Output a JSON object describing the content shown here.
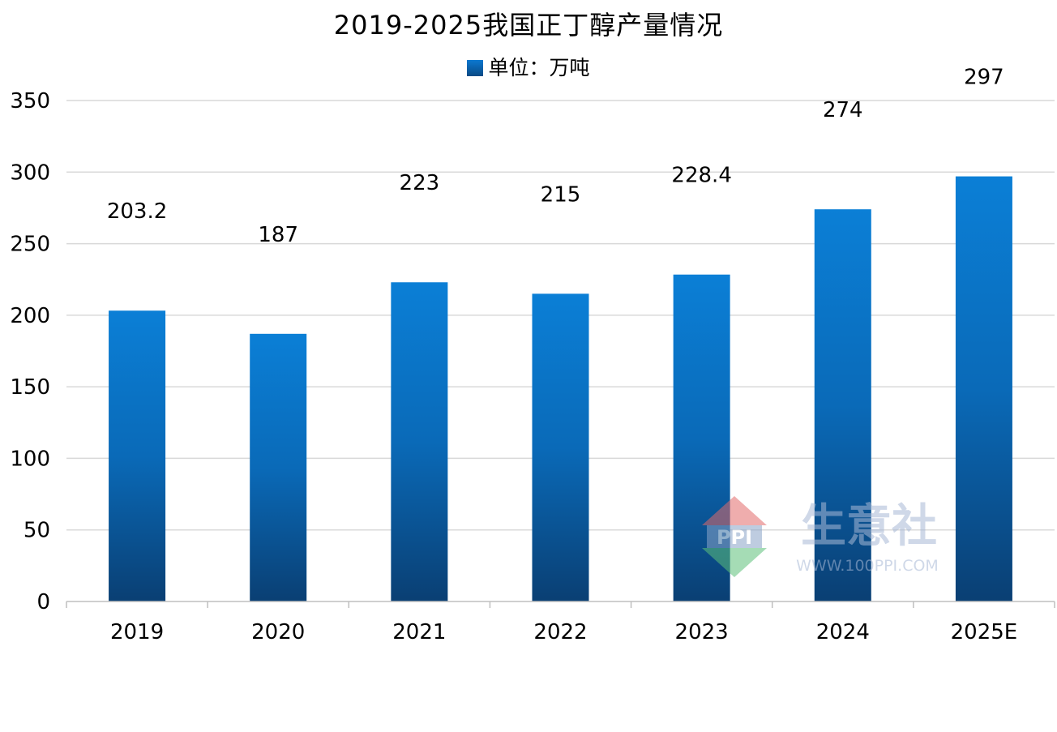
{
  "chart_data": {
    "type": "bar",
    "title": "2019-2025我国正丁醇产量情况",
    "categories": [
      "2019",
      "2020",
      "2021",
      "2022",
      "2023",
      "2024",
      "2025E"
    ],
    "series": [
      {
        "name": "单位：万吨",
        "values": [
          203.2,
          187,
          223,
          215,
          228.4,
          274,
          297
        ]
      }
    ],
    "data_labels": [
      "203.2",
      "187",
      "223",
      "215",
      "228.4",
      "274",
      "297"
    ],
    "ylim": [
      0,
      350
    ],
    "yticks": [
      0,
      50,
      100,
      150,
      200,
      250,
      300,
      350
    ],
    "grid": true,
    "legend_position": "top-center",
    "bar_color_top": "#0b7fd6",
    "bar_color_bottom": "#0a3f73"
  },
  "watermark": {
    "logo_letters": "PPI",
    "brand": "生意社",
    "url": "WWW.100PPI.COM"
  }
}
